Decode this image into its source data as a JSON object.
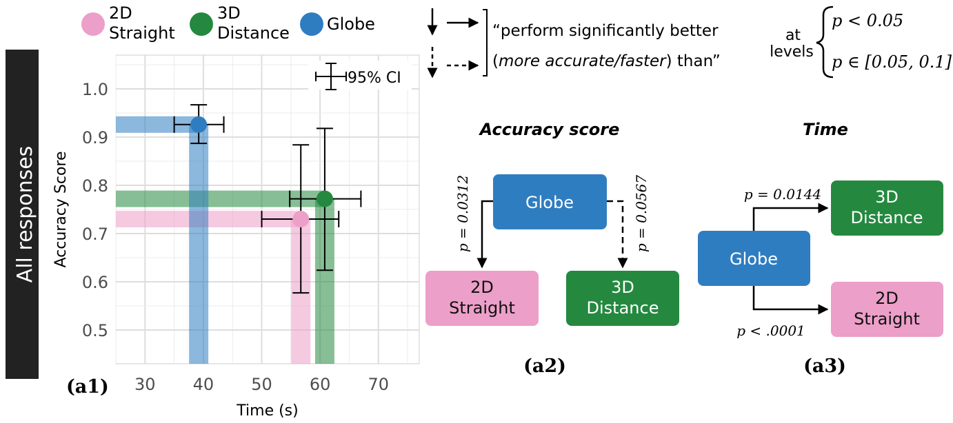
{
  "side_label": "All responses",
  "legend": [
    {
      "line1": "2D",
      "line2": "Straight",
      "color": "#ec9fc8"
    },
    {
      "line1": "3D",
      "line2": "Distance",
      "color": "#24893f"
    },
    {
      "line1": "Globe",
      "line2": "",
      "color": "#2f7dc1"
    }
  ],
  "explanation": {
    "line1": "“perform significantly better",
    "line2_open": "(",
    "line2_italic": "more accurate/faster",
    "line2_close": ") than”",
    "at": "at",
    "levels": "levels",
    "level_solid": "p < 0.05",
    "level_dashed": "p ∈ [0.05, 0.1]"
  },
  "chart_data": {
    "type": "scatter",
    "title": "",
    "panel_label": "(a1)",
    "xlabel": "Time (s)",
    "ylabel": "Accuracy Score",
    "xlim": [
      25,
      77
    ],
    "ylim": [
      0.43,
      1.07
    ],
    "grid": true,
    "xticks": [
      30,
      40,
      50,
      60,
      70
    ],
    "yticks": [
      0.5,
      0.6,
      0.7,
      0.8,
      0.9,
      1.0
    ],
    "ci_label": "95% CI",
    "series": [
      {
        "name": "2D Straight",
        "color": "#ec9fc8",
        "time": 56.7,
        "time_ci": [
          50.0,
          63.2
        ],
        "accuracy": 0.73,
        "accuracy_ci": [
          0.577,
          0.884
        ]
      },
      {
        "name": "3D Distance",
        "color": "#24893f",
        "time": 60.8,
        "time_ci": [
          54.8,
          67.0
        ],
        "accuracy": 0.772,
        "accuracy_ci": [
          0.624,
          0.918
        ]
      },
      {
        "name": "Globe",
        "color": "#2f7dc1",
        "time": 39.2,
        "time_ci": [
          35.0,
          43.5
        ],
        "accuracy": 0.926,
        "accuracy_ci": [
          0.887,
          0.967
        ]
      }
    ]
  },
  "accuracy_diagram": {
    "title": "Accuracy score",
    "label": "(a2)",
    "source": "Globe",
    "target_left": {
      "line1": "2D",
      "line2": "Straight"
    },
    "target_right": {
      "line1": "3D",
      "line2": "Distance"
    },
    "p_left": "p = 0.0312",
    "p_right": "p = 0.0567"
  },
  "time_diagram": {
    "title": "Time",
    "label": "(a3)",
    "source": "Globe",
    "target_top": {
      "line1": "3D",
      "line2": "Distance"
    },
    "target_bottom": {
      "line1": "2D",
      "line2": "Straight"
    },
    "p_top": "p = 0.0144",
    "p_bottom": "p < .0001"
  }
}
